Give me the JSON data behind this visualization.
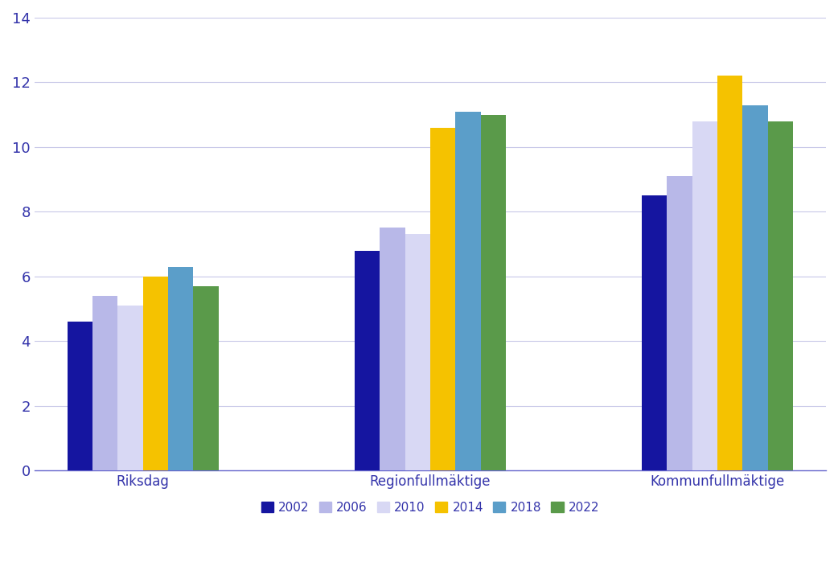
{
  "groups": [
    "Riksdag",
    "Regionfullmäktige",
    "Kommunfullmäktige"
  ],
  "years": [
    "2002",
    "2006",
    "2010",
    "2014",
    "2018",
    "2022"
  ],
  "values": {
    "Riksdag": [
      4.6,
      5.4,
      5.1,
      6.0,
      6.3,
      5.7
    ],
    "Regionfullmäktige": [
      6.8,
      7.5,
      7.3,
      10.6,
      11.1,
      11.0
    ],
    "Kommunfullmäktige": [
      8.5,
      9.1,
      10.8,
      12.2,
      11.3,
      10.8
    ]
  },
  "colors": {
    "2002": "#1515a0",
    "2006": "#b8b8e8",
    "2010": "#d8d8f4",
    "2014": "#f5c200",
    "2018": "#5b9ec9",
    "2022": "#5a9a4a"
  },
  "ylim": [
    0,
    14
  ],
  "yticks": [
    0,
    2,
    4,
    6,
    8,
    10,
    12,
    14
  ],
  "background_color": "#ffffff",
  "grid_color": "#c8c8e8",
  "axis_color": "#6666cc",
  "label_color": "#3333aa",
  "legend_fontsize": 11,
  "tick_fontsize": 13,
  "group_label_fontsize": 12,
  "bar_width": 0.115,
  "group_centers": [
    0.31,
    1.62,
    2.93
  ]
}
